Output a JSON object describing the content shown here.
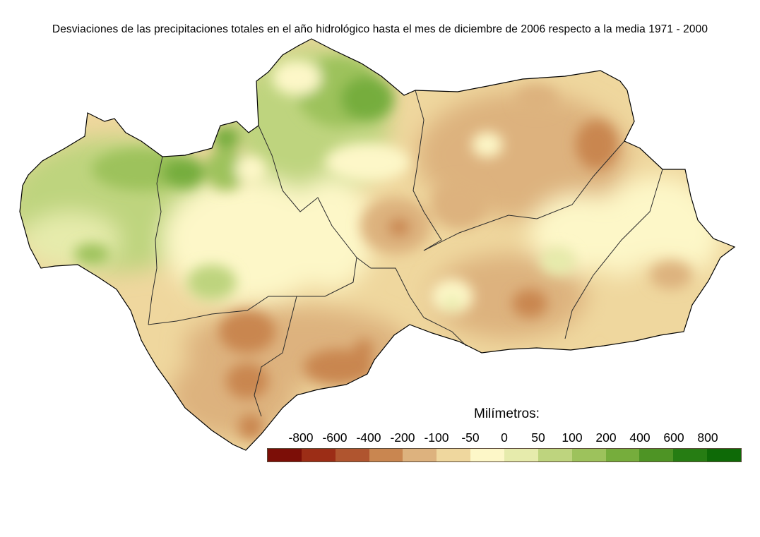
{
  "title": "Desviaciones de las precipitaciones totales en el año hidrológico hasta el mes de diciembre de 2006 respecto a la media 1971 - 2000",
  "legend": {
    "title": "Milímetros:",
    "tick_labels": [
      "-800",
      "-600",
      "-400",
      "-200",
      "-100",
      "-50",
      "0",
      "50",
      "100",
      "200",
      "400",
      "600",
      "800"
    ],
    "classes": [
      {
        "color": "#7c0e07"
      },
      {
        "color": "#9c2d16"
      },
      {
        "color": "#b0552f"
      },
      {
        "color": "#c98650"
      },
      {
        "color": "#ddb27e"
      },
      {
        "color": "#efd79e"
      },
      {
        "color": "#fdf7c8"
      },
      {
        "color": "#e6ebac"
      },
      {
        "color": "#bed47e"
      },
      {
        "color": "#9dc25c"
      },
      {
        "color": "#76ad3c"
      },
      {
        "color": "#4e9425"
      },
      {
        "color": "#267d13"
      },
      {
        "color": "#0e6a07"
      }
    ]
  }
}
